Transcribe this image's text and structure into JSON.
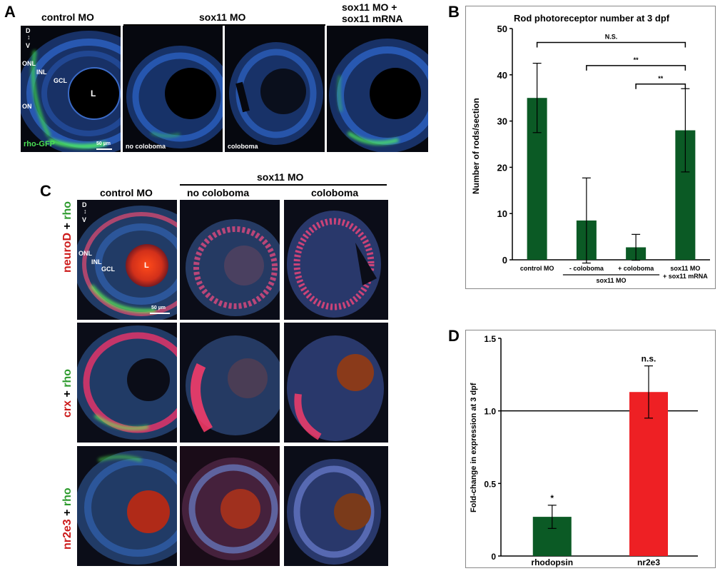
{
  "panels": {
    "a": "A",
    "b": "B",
    "c": "C",
    "d": "D"
  },
  "panel_a": {
    "headers": {
      "control": "control MO",
      "sox11": "sox11 MO",
      "rescue_line1": "sox11 MO +",
      "rescue_line2": "sox11 mRNA"
    },
    "orientation": {
      "d": "D",
      "v": "V"
    },
    "layers": {
      "onl": "ONL",
      "inl": "INL",
      "gcl": "GCL",
      "on": "ON",
      "lens": "L"
    },
    "reporter": "rho-GFP",
    "scale": "50 µm",
    "sub_labels": {
      "no_coloboma": "no coloboma",
      "coloboma": "coloboma"
    }
  },
  "panel_c": {
    "group_header": "sox11 MO",
    "col_headers": [
      "control MO",
      "no coloboma",
      "coloboma"
    ],
    "row_labels": [
      {
        "red": "neuroD",
        "plus": " + ",
        "green": "rho"
      },
      {
        "red": "crx",
        "plus": " + ",
        "green": "rho"
      },
      {
        "red": "nr2e3",
        "plus": " + ",
        "green": "rho"
      }
    ],
    "orientation": {
      "d": "D",
      "v": "V"
    },
    "layers": {
      "onl": "ONL",
      "inl": "INL",
      "gcl": "GCL",
      "lens": "L"
    },
    "scale": "50 µm"
  },
  "chart_data": [
    {
      "type": "bar",
      "title": "Rod photoreceptor number at 3 dpf",
      "ylabel": "Number of rods/section",
      "ylim": [
        0,
        50
      ],
      "yticks": [
        0,
        10,
        20,
        30,
        40,
        50
      ],
      "categories": [
        "control MO",
        "- coloboma",
        "+ coloboma",
        "sox11 MO\n+ sox11 mRNA"
      ],
      "values": [
        35,
        8.5,
        2.7,
        28
      ],
      "errors": [
        7.5,
        9.2,
        2.8,
        9
      ],
      "colors": [
        "#0b5a25",
        "#0b5a25",
        "#0b5a25",
        "#0b5a25"
      ],
      "group_label": "sox11 MO",
      "significance": [
        {
          "from": 0,
          "to": 3,
          "label": "N.S."
        },
        {
          "from": 1,
          "to": 3,
          "label": "**"
        },
        {
          "from": 2,
          "to": 3,
          "label": "**"
        }
      ]
    },
    {
      "type": "bar",
      "ylabel": "Fold-change in expression at 3 dpf",
      "ylim": [
        0,
        1.5
      ],
      "yticks": [
        "0",
        "0.5",
        "1.0",
        "1.5"
      ],
      "categories": [
        "rhodopsin",
        "nr2e3"
      ],
      "values": [
        0.27,
        1.13
      ],
      "errors": [
        0.08,
        0.18
      ],
      "colors": [
        "#0b5a25",
        "#ee2024"
      ],
      "baseline": 1.0,
      "annotations": [
        "*",
        "n.s."
      ]
    }
  ]
}
